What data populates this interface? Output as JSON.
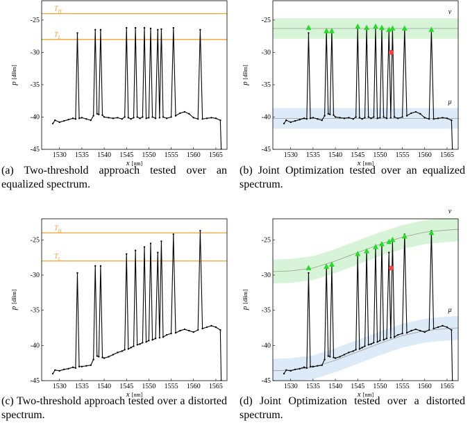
{
  "chart_data": [
    {
      "type": "line",
      "caption": "(a) Two-threshold approach tested over an equalized spectrum.",
      "xlabel": "x",
      "xunit": "[nm]",
      "ylabel": "p",
      "yunit": "[dBm]",
      "xlim": [
        1526,
        1567.5
      ],
      "ylim": [
        -45,
        -22
      ],
      "xticks": [
        1530,
        1535,
        1540,
        1545,
        1550,
        1555,
        1560,
        1565
      ],
      "yticks": [
        -45,
        -40,
        -35,
        -30,
        -25
      ],
      "color": "#000000",
      "x": [
        1528.5,
        1529,
        1530,
        1531,
        1532,
        1533,
        1533.6,
        1534,
        1534.4,
        1535,
        1536,
        1537,
        1537.6,
        1538,
        1538.4,
        1538.8,
        1539.2,
        1539.6,
        1540,
        1541,
        1542,
        1543,
        1544,
        1544.6,
        1545,
        1545.4,
        1546,
        1546.6,
        1547,
        1547.4,
        1548,
        1548.6,
        1549,
        1549.4,
        1550,
        1550.4,
        1550.8,
        1551.5,
        1552,
        1552.4,
        1552.8,
        1553.2,
        1554,
        1555,
        1555.5,
        1556,
        1557,
        1558,
        1559,
        1560,
        1561,
        1561.5,
        1562,
        1563,
        1564,
        1565,
        1566,
        1566.2
      ],
      "values": [
        -41,
        -40.5,
        -40.8,
        -40.6,
        -40.4,
        -40.2,
        -40.3,
        -27,
        -40.2,
        -40.1,
        -40.3,
        -40.5,
        -39.8,
        -26.5,
        -39.5,
        -39.6,
        -26.5,
        -39.7,
        -40,
        -40.1,
        -40.2,
        -40.1,
        -40.3,
        -40,
        -26.2,
        -40.1,
        -40.3,
        -40.1,
        -26.2,
        -40,
        -40.2,
        -40,
        -26.2,
        -40.2,
        -40.1,
        -26.3,
        -40,
        -40.2,
        -26.5,
        -40.1,
        -26.4,
        -40,
        -40.2,
        -40,
        -26.2,
        -39.8,
        -39.4,
        -39.2,
        -39.5,
        -40.1,
        -40.3,
        -26.5,
        -40.3,
        -40.2,
        -40.1,
        -40.2,
        -40.5,
        -45
      ],
      "thresholds": [
        {
          "name": "T",
          "sub": "H",
          "value": -24,
          "color": "#f0a030"
        },
        {
          "name": "T",
          "sub": "L",
          "value": -28,
          "color": "#f0a030"
        }
      ]
    },
    {
      "type": "line",
      "caption": "(b) Joint Optimization tested over an equalized spectrum.",
      "xlabel": "x",
      "xunit": "[nm]",
      "ylabel": "p",
      "yunit": "[dBm]",
      "xlim": [
        1526,
        1567.5
      ],
      "ylim": [
        -45,
        -22
      ],
      "xticks": [
        1530,
        1535,
        1540,
        1545,
        1550,
        1555,
        1560,
        1565
      ],
      "yticks": [
        -45,
        -40,
        -35,
        -30,
        -25
      ],
      "color": "#000000",
      "x": [
        1528.5,
        1529,
        1530,
        1531,
        1532,
        1533,
        1533.6,
        1534,
        1534.4,
        1535,
        1536,
        1537,
        1537.6,
        1538,
        1538.4,
        1538.8,
        1539.2,
        1539.6,
        1540,
        1541,
        1542,
        1543,
        1544,
        1544.6,
        1545,
        1545.4,
        1546,
        1546.6,
        1547,
        1547.4,
        1548,
        1548.6,
        1549,
        1549.4,
        1550,
        1550.4,
        1550.8,
        1551.5,
        1552,
        1552.4,
        1552.8,
        1553.2,
        1554,
        1555,
        1555.5,
        1556,
        1557,
        1558,
        1559,
        1560,
        1561,
        1561.5,
        1562,
        1563,
        1564,
        1565,
        1566,
        1566.2
      ],
      "values": [
        -41,
        -40.5,
        -40.8,
        -40.6,
        -40.4,
        -40.2,
        -40.3,
        -27,
        -40.2,
        -40.1,
        -40.3,
        -40.5,
        -39.8,
        -26.5,
        -39.5,
        -39.6,
        -26.5,
        -39.7,
        -40,
        -40.1,
        -40.2,
        -40.1,
        -40.3,
        -40,
        -26.2,
        -40.1,
        -40.3,
        -40.1,
        -26.2,
        -40,
        -40.2,
        -40,
        -26.2,
        -40.2,
        -40.1,
        -26.3,
        -40,
        -40.2,
        -26.5,
        -40.1,
        -26.4,
        -40,
        -40.2,
        -40,
        -26.2,
        -39.8,
        -39.4,
        -39.2,
        -39.5,
        -40.1,
        -40.3,
        -26.5,
        -40.3,
        -40.2,
        -40.1,
        -40.2,
        -40.5,
        -45
      ],
      "bands": [
        {
          "name": "ν",
          "color": "#c8f0c8",
          "label_color": "#3a9a3a",
          "x": [
            1526,
            1567.5
          ],
          "center": [
            -26.3,
            -26.3
          ],
          "halfwidth": 1.6
        },
        {
          "name": "μ",
          "color": "#cfe2f6",
          "label_color": "#5aa8e0",
          "x": [
            1526,
            1567.5
          ],
          "center": [
            -40.2,
            -40.2
          ],
          "halfwidth": 1.6
        }
      ],
      "accepted": {
        "color": "#22dd22",
        "x": [
          1534,
          1538,
          1539.2,
          1545,
          1547,
          1549,
          1550.4,
          1552,
          1552.8,
          1555.5,
          1561.5
        ],
        "values": [
          -26.2,
          -26.7,
          -26.7,
          -26,
          -26.2,
          -26,
          -26.2,
          -26.5,
          -26.3,
          -26.3,
          -26.5
        ]
      },
      "rejected": {
        "color": "#ff4040",
        "x": [
          1552.5
        ],
        "values": [
          -30
        ]
      }
    },
    {
      "type": "line",
      "caption": "(c) Two-threshold approach tested over a distorted spectrum.",
      "xlabel": "x",
      "xunit": "[nm]",
      "ylabel": "p",
      "yunit": "[dBm]",
      "xlim": [
        1526,
        1567.5
      ],
      "ylim": [
        -45,
        -22
      ],
      "xticks": [
        1530,
        1535,
        1540,
        1545,
        1550,
        1555,
        1560,
        1565
      ],
      "yticks": [
        -45,
        -40,
        -35,
        -30,
        -25
      ],
      "color": "#000000",
      "x": [
        1528.5,
        1529,
        1530,
        1531,
        1532,
        1533,
        1533.6,
        1534,
        1534.4,
        1535,
        1536,
        1537,
        1537.6,
        1538,
        1538.4,
        1538.8,
        1539.2,
        1539.6,
        1540,
        1541,
        1542,
        1543,
        1544,
        1544.6,
        1545,
        1545.4,
        1546,
        1546.6,
        1547,
        1547.4,
        1548,
        1548.6,
        1549,
        1549.4,
        1550,
        1550.4,
        1550.8,
        1551.5,
        1552,
        1552.4,
        1552.8,
        1553.2,
        1554,
        1555,
        1555.5,
        1556,
        1557,
        1558,
        1559,
        1560,
        1561,
        1561.5,
        1562,
        1563,
        1564,
        1565,
        1566,
        1566.2
      ],
      "values": [
        -44,
        -43.5,
        -43.6,
        -43.4,
        -43.3,
        -43.1,
        -43.2,
        -29.7,
        -43,
        -43,
        -42.9,
        -42.8,
        -42,
        -28.7,
        -41.5,
        -41.6,
        -28.7,
        -41.7,
        -41.8,
        -41.6,
        -41.3,
        -41,
        -40.8,
        -40.6,
        -27,
        -40.5,
        -40.3,
        -40.1,
        -26.5,
        -39.9,
        -39.8,
        -39.6,
        -26,
        -39.5,
        -39.3,
        -25.5,
        -39.2,
        -39,
        -26.8,
        -38.9,
        -25.2,
        -38.8,
        -38.5,
        -38.3,
        -24.2,
        -38.2,
        -37.9,
        -37.7,
        -37.9,
        -38.1,
        -37.8,
        -23.7,
        -37.6,
        -37.4,
        -37.2,
        -37.4,
        -37.8,
        -45
      ],
      "thresholds": [
        {
          "name": "T",
          "sub": "H",
          "value": -24,
          "color": "#f0a030"
        },
        {
          "name": "T",
          "sub": "L",
          "value": -28,
          "color": "#f0a030"
        }
      ]
    },
    {
      "type": "line",
      "caption": "(d) Joint Optimization tested over a distorted spectrum.",
      "xlabel": "x",
      "xunit": "[nm]",
      "ylabel": "p",
      "yunit": "[dBm]",
      "xlim": [
        1526,
        1567.5
      ],
      "ylim": [
        -45,
        -22
      ],
      "xticks": [
        1530,
        1535,
        1540,
        1545,
        1550,
        1555,
        1560,
        1565
      ],
      "yticks": [
        -45,
        -40,
        -35,
        -30,
        -25
      ],
      "color": "#000000",
      "x": [
        1528.5,
        1529,
        1530,
        1531,
        1532,
        1533,
        1533.6,
        1534,
        1534.4,
        1535,
        1536,
        1537,
        1537.6,
        1538,
        1538.4,
        1538.8,
        1539.2,
        1539.6,
        1540,
        1541,
        1542,
        1543,
        1544,
        1544.6,
        1545,
        1545.4,
        1546,
        1546.6,
        1547,
        1547.4,
        1548,
        1548.6,
        1549,
        1549.4,
        1550,
        1550.4,
        1550.8,
        1551.5,
        1552,
        1552.4,
        1552.8,
        1553.2,
        1554,
        1555,
        1555.5,
        1556,
        1557,
        1558,
        1559,
        1560,
        1561,
        1561.5,
        1562,
        1563,
        1564,
        1565,
        1566,
        1566.2
      ],
      "values": [
        -44,
        -43.5,
        -43.6,
        -43.4,
        -43.3,
        -43.1,
        -43.2,
        -29.7,
        -43,
        -43,
        -42.9,
        -42.8,
        -42,
        -28.7,
        -41.5,
        -41.6,
        -28.7,
        -41.7,
        -41.8,
        -41.6,
        -41.3,
        -41,
        -40.8,
        -40.6,
        -27,
        -40.5,
        -40.3,
        -40.1,
        -26.5,
        -39.9,
        -39.8,
        -39.6,
        -26,
        -39.5,
        -39.3,
        -25.5,
        -39.2,
        -39,
        -26.8,
        -38.9,
        -25.2,
        -38.8,
        -38.5,
        -38.3,
        -24.2,
        -38.2,
        -37.9,
        -37.7,
        -37.9,
        -38.1,
        -37.8,
        -23.7,
        -37.6,
        -37.4,
        -37.2,
        -37.4,
        -37.8,
        -45
      ],
      "bands": [
        {
          "name": "ν",
          "color": "#c8f0c8",
          "label_color": "#3a9a3a",
          "x": [
            1526,
            1530,
            1535,
            1540,
            1545,
            1550,
            1555,
            1560,
            1565,
            1567.5
          ],
          "center": [
            -29.5,
            -29.4,
            -29,
            -28,
            -26.8,
            -25.6,
            -24.6,
            -23.9,
            -23.6,
            -23.5
          ],
          "halfwidth": 1.7
        },
        {
          "name": "μ",
          "color": "#cfe2f6",
          "label_color": "#5aa8e0",
          "x": [
            1526,
            1530,
            1535,
            1540,
            1545,
            1550,
            1555,
            1560,
            1565,
            1567.5
          ],
          "center": [
            -43.6,
            -43.5,
            -43.1,
            -42.1,
            -40.9,
            -39.7,
            -38.6,
            -37.9,
            -37.6,
            -37.5
          ],
          "halfwidth": 1.7
        }
      ],
      "accepted": {
        "color": "#22dd22",
        "x": [
          1534,
          1538,
          1539.2,
          1545,
          1547,
          1549,
          1550.4,
          1552,
          1552.8,
          1555.5,
          1561.5
        ],
        "values": [
          -29,
          -28.8,
          -28.5,
          -27,
          -26.6,
          -26,
          -25.6,
          -25.3,
          -25,
          -24.5,
          -24
        ]
      },
      "rejected": {
        "color": "#ff4040",
        "x": [
          1552.5
        ],
        "values": [
          -29
        ]
      }
    }
  ]
}
